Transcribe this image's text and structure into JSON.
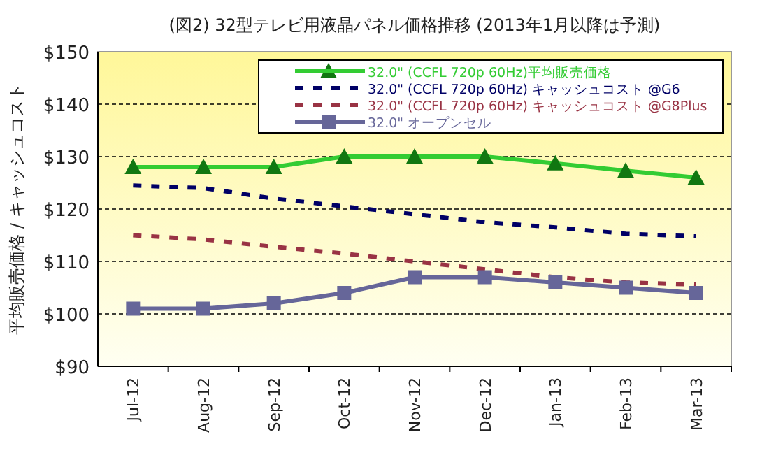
{
  "chart_data": {
    "type": "line",
    "title": "(図2) 32型テレビ用液晶パネル価格推移 (2013年1月以降は予測)",
    "ylabel": "平均販売価格 / キャッシュコスト",
    "categories": [
      "Jul-12",
      "Aug-12",
      "Sep-12",
      "Oct-12",
      "Nov-12",
      "Dec-12",
      "Jan-13",
      "Feb-13",
      "Mar-13"
    ],
    "series": [
      {
        "name": "32.0\" (CCFL 720p 60Hz)平均販売価格",
        "color": "#33cc33",
        "marker": "triangle",
        "line_style": "solid",
        "values": [
          128,
          128,
          128,
          130,
          130,
          130,
          128.7,
          127.3,
          126
        ]
      },
      {
        "name": "32.0\" (CCFL 720p 60Hz) キャッシュコスト @G6",
        "color": "#000066",
        "marker": "none",
        "line_style": "dashed",
        "values": [
          124.5,
          124,
          122,
          120.5,
          119,
          117.5,
          116.5,
          115.3,
          114.8
        ]
      },
      {
        "name": "32.0\" (CCFL 720p 60Hz) キャッシュコスト @G8Plus",
        "color": "#993344",
        "marker": "none",
        "line_style": "dashed",
        "values": [
          115,
          114.2,
          112.8,
          111.5,
          110,
          108.5,
          107,
          106,
          105.6
        ]
      },
      {
        "name": "32.0\" オープンセル",
        "color": "#666699",
        "marker": "square",
        "line_style": "solid",
        "values": [
          101,
          101,
          102,
          104,
          107,
          107,
          106,
          105,
          104
        ]
      }
    ],
    "ylim": [
      90,
      150
    ],
    "yticks": [
      {
        "value": 90,
        "label": "$90"
      },
      {
        "value": 100,
        "label": "$100"
      },
      {
        "value": 110,
        "label": "$110"
      },
      {
        "value": 120,
        "label": "$120"
      },
      {
        "value": 130,
        "label": "$130"
      },
      {
        "value": 140,
        "label": "$140"
      },
      {
        "value": 150,
        "label": "$150"
      }
    ],
    "grid": "y",
    "legend": "top right"
  }
}
